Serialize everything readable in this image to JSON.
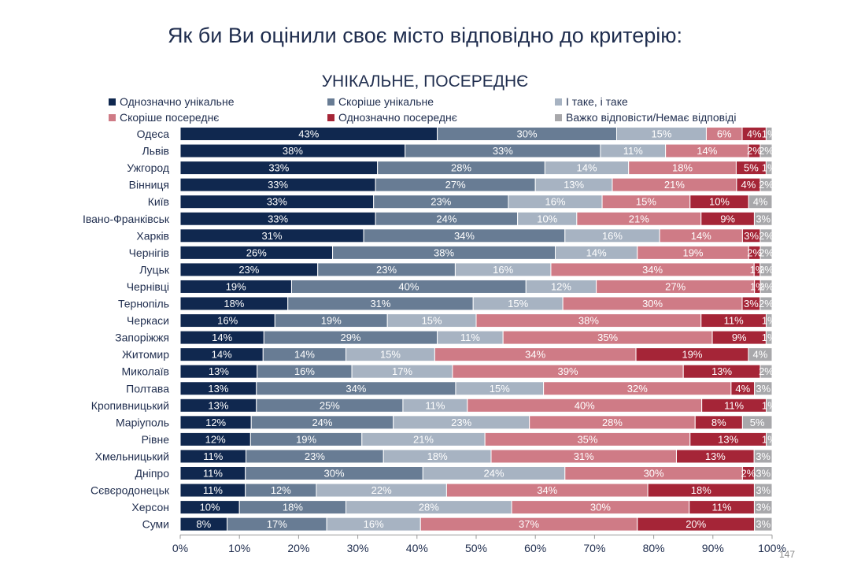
{
  "slide": {
    "title": "Як би Ви оцінили своє місто відповідно до критерію:",
    "page_number": "147"
  },
  "chart_data": {
    "type": "bar",
    "orientation": "horizontal",
    "stacked": true,
    "title": "УНІКАЛЬНЕ, ПОСЕРЕДНЄ",
    "xlabel": "",
    "ylabel": "",
    "xlim": [
      0,
      100
    ],
    "x_ticks": [
      "0%",
      "10%",
      "20%",
      "30%",
      "40%",
      "50%",
      "60%",
      "70%",
      "80%",
      "90%",
      "100%"
    ],
    "grid": false,
    "legend_position": "top",
    "categories": [
      "Одеса",
      "Львів",
      "Ужгород",
      "Вінниця",
      "Київ",
      "Івано-Франківськ",
      "Харків",
      "Чернігів",
      "Луцьк",
      "Чернівці",
      "Тернопіль",
      "Черкаси",
      "Запоріжжя",
      "Житомир",
      "Миколаїв",
      "Полтава",
      "Кропивницький",
      "Маріуполь",
      "Рівне",
      "Хмельницький",
      "Дніпро",
      "Сєвєродонецьк",
      "Херсон",
      "Суми"
    ],
    "series": [
      {
        "name": "Однозначно унікальне",
        "color": "#10284f",
        "values": [
          43,
          38,
          33,
          33,
          33,
          33,
          31,
          26,
          23,
          19,
          18,
          16,
          14,
          14,
          13,
          13,
          13,
          12,
          12,
          11,
          11,
          11,
          10,
          8
        ]
      },
      {
        "name": "Скоріше унікальне",
        "color": "#687c94",
        "values": [
          30,
          33,
          28,
          27,
          23,
          24,
          34,
          38,
          23,
          40,
          31,
          19,
          29,
          14,
          16,
          34,
          25,
          24,
          19,
          23,
          30,
          12,
          18,
          17
        ]
      },
      {
        "name": "І таке, і таке",
        "color": "#a7b3c2",
        "values": [
          15,
          11,
          14,
          13,
          16,
          10,
          16,
          14,
          16,
          12,
          15,
          15,
          11,
          15,
          17,
          15,
          11,
          23,
          21,
          18,
          24,
          22,
          28,
          16
        ]
      },
      {
        "name": "Скоріше посереднє",
        "color": "#cf7b86",
        "values": [
          6,
          14,
          18,
          21,
          15,
          21,
          14,
          19,
          34,
          27,
          30,
          38,
          35,
          34,
          39,
          32,
          40,
          28,
          35,
          31,
          30,
          34,
          30,
          37
        ]
      },
      {
        "name": "Однозначно посереднє",
        "color": "#a52537",
        "values": [
          4,
          2,
          5,
          4,
          10,
          9,
          3,
          2,
          1,
          1,
          3,
          11,
          9,
          19,
          13,
          4,
          11,
          8,
          13,
          13,
          2,
          18,
          11,
          20
        ]
      },
      {
        "name": "Важко відповісти/Немає відповіді",
        "color": "#a8a8ab",
        "values": [
          1,
          2,
          1,
          2,
          4,
          3,
          2,
          2,
          2,
          2,
          2,
          1,
          1,
          4,
          2,
          3,
          1,
          5,
          1,
          3,
          3,
          3,
          3,
          3
        ]
      }
    ]
  }
}
